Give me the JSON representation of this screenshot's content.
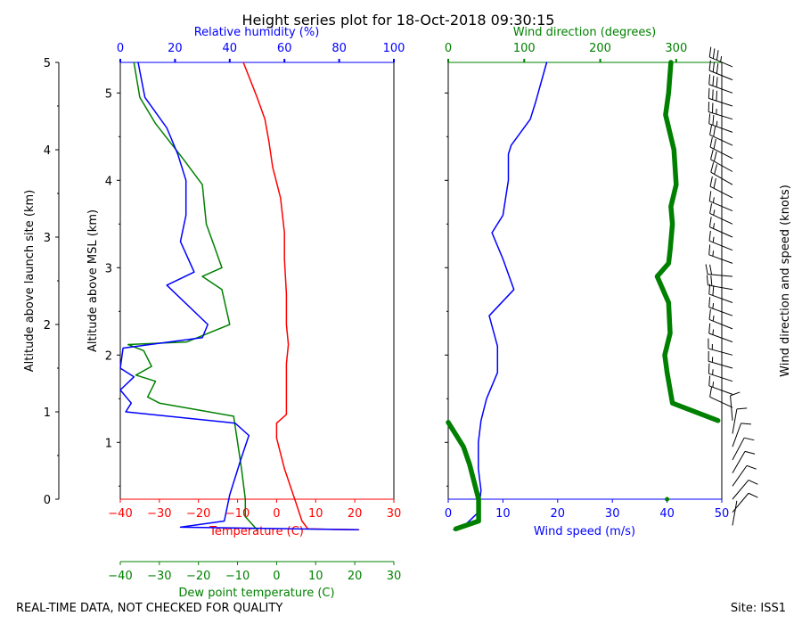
{
  "title": "Height series plot for 18-Oct-2018 09:30:15",
  "footer_left": "REAL-TIME DATA, NOT CHECKED FOR QUALITY",
  "footer_right": "Site: ISS1",
  "colors": {
    "temperature": "#ff0000",
    "dewpoint": "#008000",
    "humidity": "#0000ff",
    "wind_speed": "#0000ff",
    "wind_dir": "#008000",
    "axis": "#000000"
  },
  "chart_data": [
    {
      "type": "line",
      "name": "thermodynamic-panel",
      "y_outer_label": "Altitude above launch site (km)",
      "y_outer_ticks": [
        0,
        1,
        2,
        3,
        4,
        5
      ],
      "y_outer_range": [
        0,
        5
      ],
      "y_inner_label": "Altitude above MSL (km)",
      "y_inner_ticks": [
        1,
        2,
        3,
        4,
        5
      ],
      "y_inner_range": [
        0.35,
        5.35
      ],
      "axes": {
        "temperature": {
          "label": "Temperature (C)",
          "range": [
            -40,
            30
          ],
          "ticks": [
            -40,
            -30,
            -20,
            -10,
            0,
            10,
            20,
            30
          ]
        },
        "dewpoint": {
          "label": "Dew point temperature (C)",
          "range": [
            -40,
            30
          ],
          "ticks": [
            -40,
            -30,
            -20,
            -10,
            0,
            10,
            20,
            30
          ]
        },
        "humidity": {
          "label": "Relative humidity (%)",
          "range": [
            0,
            100
          ],
          "ticks": [
            0,
            20,
            40,
            60,
            80,
            100
          ]
        }
      },
      "series": [
        {
          "name": "Temperature",
          "axis": "temperature",
          "points": [
            [
              21,
              0.0
            ],
            [
              8,
              0.01
            ],
            [
              6.5,
              0.1
            ],
            [
              5,
              0.3
            ],
            [
              2,
              0.7
            ],
            [
              0,
              1.05
            ],
            [
              0,
              1.22
            ],
            [
              2.5,
              1.32
            ],
            [
              2.5,
              1.6
            ],
            [
              2.5,
              1.9
            ],
            [
              3,
              2.12
            ],
            [
              2.5,
              2.35
            ],
            [
              2.5,
              2.7
            ],
            [
              2,
              3.1
            ],
            [
              2,
              3.4
            ],
            [
              1,
              3.8
            ],
            [
              -1,
              4.15
            ],
            [
              -2,
              4.45
            ],
            [
              -3,
              4.7
            ],
            [
              -5,
              4.95
            ],
            [
              -8.5,
              5.35
            ]
          ]
        },
        {
          "name": "Dew point",
          "axis": "dewpoint",
          "points": [
            [
              -5,
              0.0
            ],
            [
              -6,
              0.05
            ],
            [
              -8,
              0.15
            ],
            [
              -8,
              0.35
            ],
            [
              -9,
              0.7
            ],
            [
              -11,
              1.3
            ],
            [
              -30,
              1.45
            ],
            [
              -33,
              1.52
            ],
            [
              -31,
              1.7
            ],
            [
              -36,
              1.77
            ],
            [
              -32,
              1.87
            ],
            [
              -34,
              2.05
            ],
            [
              -38,
              2.12
            ],
            [
              -23,
              2.15
            ],
            [
              -12,
              2.35
            ],
            [
              -14,
              2.75
            ],
            [
              -19,
              2.9
            ],
            [
              -14,
              3.0
            ],
            [
              -16,
              3.25
            ],
            [
              -18,
              3.5
            ],
            [
              -19,
              3.95
            ],
            [
              -24,
              4.25
            ],
            [
              -31,
              4.65
            ],
            [
              -35,
              4.95
            ],
            [
              -36.5,
              5.35
            ]
          ]
        },
        {
          "name": "Relative humidity",
          "axis": "humidity",
          "points": [
            [
              87,
              0.0
            ],
            [
              22,
              0.03
            ],
            [
              38,
              0.1
            ],
            [
              40,
              0.4
            ],
            [
              44,
              0.8
            ],
            [
              47,
              1.08
            ],
            [
              42,
              1.22
            ],
            [
              2,
              1.35
            ],
            [
              4,
              1.45
            ],
            [
              0,
              1.6
            ],
            [
              5,
              1.75
            ],
            [
              0,
              1.85
            ],
            [
              1,
              2.08
            ],
            [
              30,
              2.2
            ],
            [
              32,
              2.35
            ],
            [
              17,
              2.8
            ],
            [
              27,
              2.95
            ],
            [
              22,
              3.3
            ],
            [
              24,
              3.6
            ],
            [
              24,
              4.0
            ],
            [
              21,
              4.3
            ],
            [
              17,
              4.6
            ],
            [
              9,
              4.95
            ],
            [
              6.5,
              5.35
            ]
          ]
        }
      ]
    },
    {
      "type": "line",
      "name": "wind-panel",
      "axes": {
        "wind_speed": {
          "label": "Wind speed (m/s)",
          "range": [
            0,
            50
          ],
          "ticks": [
            0,
            10,
            20,
            30,
            40,
            50
          ]
        },
        "wind_dir": {
          "label": "Wind direction (degrees)",
          "range": [
            0,
            360
          ],
          "ticks": [
            0,
            100,
            200,
            300
          ]
        }
      },
      "right_label": "Wind direction and speed (knots)",
      "series": [
        {
          "name": "Wind speed",
          "axis": "wind_speed",
          "points": [
            [
              1,
              0.0
            ],
            [
              3,
              0.05
            ],
            [
              5.5,
              0.2
            ],
            [
              6,
              0.45
            ],
            [
              5.5,
              0.7
            ],
            [
              5.5,
              1.0
            ],
            [
              6,
              1.25
            ],
            [
              7,
              1.5
            ],
            [
              9,
              1.8
            ],
            [
              9,
              2.1
            ],
            [
              7.5,
              2.45
            ],
            [
              12,
              2.75
            ],
            [
              10,
              3.1
            ],
            [
              8,
              3.4
            ],
            [
              10,
              3.6
            ],
            [
              11,
              4.0
            ],
            [
              11,
              4.3
            ],
            [
              11.5,
              4.4
            ],
            [
              15,
              4.7
            ],
            [
              16,
              4.9
            ],
            [
              18,
              5.35
            ]
          ]
        },
        {
          "name": "Wind direction",
          "axis": "wind_dir",
          "points": [
            [
              10,
              0.01
            ],
            [
              40,
              0.1
            ],
            [
              40,
              0.35
            ],
            [
              28,
              0.75
            ],
            [
              20,
              0.95
            ],
            [
              0,
              1.23
            ],
            [
              355,
              1.25
            ],
            [
              295,
              1.45
            ],
            [
              288,
              1.8
            ],
            [
              285,
              2.0
            ],
            [
              292,
              2.25
            ],
            [
              290,
              2.6
            ],
            [
              275,
              2.9
            ],
            [
              290,
              3.05
            ],
            [
              292,
              3.2
            ],
            [
              295,
              3.5
            ],
            [
              293,
              3.7
            ],
            [
              300,
              3.95
            ],
            [
              297,
              4.35
            ],
            [
              286,
              4.75
            ],
            [
              290,
              5.0
            ],
            [
              293,
              5.35
            ]
          ]
        }
      ],
      "wind_barbs": [
        {
          "alt_km": 0.05,
          "dir_deg": 10,
          "speed_kt": 2
        },
        {
          "alt_km": 0.2,
          "dir_deg": 40,
          "speed_kt": 11
        },
        {
          "alt_km": 0.35,
          "dir_deg": 40,
          "speed_kt": 12
        },
        {
          "alt_km": 0.5,
          "dir_deg": 35,
          "speed_kt": 12
        },
        {
          "alt_km": 0.65,
          "dir_deg": 30,
          "speed_kt": 11
        },
        {
          "alt_km": 0.8,
          "dir_deg": 28,
          "speed_kt": 11
        },
        {
          "alt_km": 0.95,
          "dir_deg": 20,
          "speed_kt": 11
        },
        {
          "alt_km": 1.1,
          "dir_deg": 10,
          "speed_kt": 11
        },
        {
          "alt_km": 1.25,
          "dir_deg": 355,
          "speed_kt": 12
        },
        {
          "alt_km": 1.4,
          "dir_deg": 295,
          "speed_kt": 13
        },
        {
          "alt_km": 1.55,
          "dir_deg": 290,
          "speed_kt": 15
        },
        {
          "alt_km": 1.7,
          "dir_deg": 288,
          "speed_kt": 17
        },
        {
          "alt_km": 1.85,
          "dir_deg": 286,
          "speed_kt": 17
        },
        {
          "alt_km": 2.0,
          "dir_deg": 285,
          "speed_kt": 16
        },
        {
          "alt_km": 2.15,
          "dir_deg": 290,
          "speed_kt": 16
        },
        {
          "alt_km": 2.3,
          "dir_deg": 292,
          "speed_kt": 16
        },
        {
          "alt_km": 2.45,
          "dir_deg": 290,
          "speed_kt": 15
        },
        {
          "alt_km": 2.6,
          "dir_deg": 290,
          "speed_kt": 20
        },
        {
          "alt_km": 2.75,
          "dir_deg": 280,
          "speed_kt": 23
        },
        {
          "alt_km": 2.9,
          "dir_deg": 275,
          "speed_kt": 22
        },
        {
          "alt_km": 3.05,
          "dir_deg": 290,
          "speed_kt": 19
        },
        {
          "alt_km": 3.2,
          "dir_deg": 292,
          "speed_kt": 18
        },
        {
          "alt_km": 3.35,
          "dir_deg": 294,
          "speed_kt": 16
        },
        {
          "alt_km": 3.5,
          "dir_deg": 295,
          "speed_kt": 16
        },
        {
          "alt_km": 3.65,
          "dir_deg": 293,
          "speed_kt": 19
        },
        {
          "alt_km": 3.8,
          "dir_deg": 297,
          "speed_kt": 21
        },
        {
          "alt_km": 3.95,
          "dir_deg": 300,
          "speed_kt": 21
        },
        {
          "alt_km": 4.1,
          "dir_deg": 299,
          "speed_kt": 21
        },
        {
          "alt_km": 4.25,
          "dir_deg": 297,
          "speed_kt": 21
        },
        {
          "alt_km": 4.4,
          "dir_deg": 295,
          "speed_kt": 22
        },
        {
          "alt_km": 4.55,
          "dir_deg": 290,
          "speed_kt": 27
        },
        {
          "alt_km": 4.7,
          "dir_deg": 287,
          "speed_kt": 29
        },
        {
          "alt_km": 4.85,
          "dir_deg": 288,
          "speed_kt": 30
        },
        {
          "alt_km": 5.0,
          "dir_deg": 290,
          "speed_kt": 32
        },
        {
          "alt_km": 5.15,
          "dir_deg": 292,
          "speed_kt": 33
        },
        {
          "alt_km": 5.3,
          "dir_deg": 293,
          "speed_kt": 35
        }
      ]
    }
  ]
}
